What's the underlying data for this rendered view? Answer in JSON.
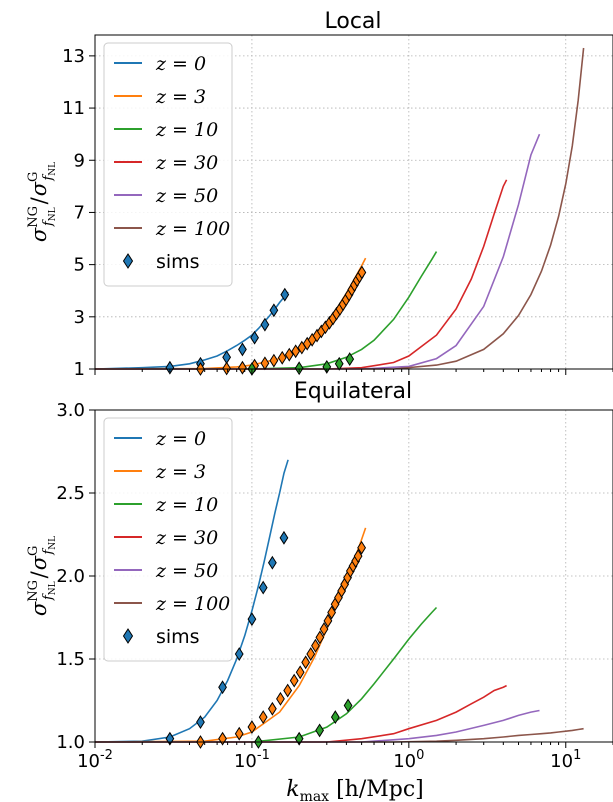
{
  "chart_data": [
    {
      "type": "line",
      "title": "Local",
      "ylabel": "σ^NG_fNL / σ^G_fNL",
      "xlabel": "",
      "xscale": "log",
      "xlim": [
        0.01,
        20
      ],
      "ylim": [
        1,
        13.8
      ],
      "yticks": [
        "1",
        "3",
        "5",
        "7",
        "9",
        "11",
        "13"
      ],
      "grid": true,
      "legend": "upper left",
      "series": [
        {
          "name": "z = 0",
          "color": "#1f77b4",
          "x": [
            0.01,
            0.02,
            0.03,
            0.04,
            0.05,
            0.06,
            0.07,
            0.08,
            0.09,
            0.1,
            0.11,
            0.12,
            0.13,
            0.14,
            0.15,
            0.16,
            0.17
          ],
          "y": [
            1.0,
            1.05,
            1.1,
            1.2,
            1.35,
            1.5,
            1.7,
            1.9,
            2.1,
            2.3,
            2.55,
            2.8,
            3.05,
            3.3,
            3.55,
            3.75,
            3.95
          ]
        },
        {
          "name": "z = 3",
          "color": "#ff7f0e",
          "x": [
            0.01,
            0.05,
            0.08,
            0.1,
            0.15,
            0.2,
            0.25,
            0.3,
            0.35,
            0.4,
            0.45,
            0.5,
            0.53
          ],
          "y": [
            1.0,
            1.02,
            1.08,
            1.15,
            1.4,
            1.8,
            2.25,
            2.8,
            3.35,
            3.9,
            4.45,
            4.95,
            5.25
          ]
        },
        {
          "name": "z = 10",
          "color": "#2ca02c",
          "x": [
            0.01,
            0.1,
            0.2,
            0.3,
            0.4,
            0.5,
            0.6,
            0.8,
            1.0,
            1.2,
            1.4,
            1.5
          ],
          "y": [
            1.0,
            1.0,
            1.05,
            1.2,
            1.45,
            1.75,
            2.1,
            2.9,
            3.75,
            4.55,
            5.2,
            5.5
          ]
        },
        {
          "name": "z = 30",
          "color": "#d62728",
          "x": [
            0.01,
            0.3,
            0.5,
            0.8,
            1.0,
            1.5,
            2.0,
            2.5,
            3.0,
            3.5,
            4.0,
            4.2
          ],
          "y": [
            1.0,
            1.0,
            1.05,
            1.25,
            1.5,
            2.3,
            3.3,
            4.45,
            5.7,
            6.95,
            8.0,
            8.25
          ]
        },
        {
          "name": "z = 50",
          "color": "#9467bd",
          "x": [
            0.01,
            0.5,
            1.0,
            1.5,
            2.0,
            3.0,
            4.0,
            5.0,
            6.0,
            6.8
          ],
          "y": [
            1.0,
            1.0,
            1.1,
            1.4,
            1.9,
            3.4,
            5.3,
            7.3,
            9.2,
            10.0
          ]
        },
        {
          "name": "z = 100",
          "color": "#8c564b",
          "x": [
            0.01,
            0.8,
            1.5,
            2.0,
            3.0,
            4.0,
            5.0,
            6.0,
            7.0,
            8.0,
            9.0,
            10.0,
            11.0,
            12.0,
            13.0
          ],
          "y": [
            1.0,
            1.0,
            1.15,
            1.3,
            1.75,
            2.35,
            3.05,
            3.85,
            4.75,
            5.75,
            6.85,
            8.1,
            9.55,
            11.3,
            13.3
          ]
        }
      ],
      "sims": {
        "name": "sims",
        "points": [
          {
            "x": 0.03,
            "y": 1.05,
            "color": "#1f77b4"
          },
          {
            "x": 0.047,
            "y": 1.2,
            "color": "#1f77b4"
          },
          {
            "x": 0.069,
            "y": 1.45,
            "color": "#1f77b4"
          },
          {
            "x": 0.087,
            "y": 1.75,
            "color": "#1f77b4"
          },
          {
            "x": 0.104,
            "y": 2.2,
            "color": "#1f77b4"
          },
          {
            "x": 0.121,
            "y": 2.7,
            "color": "#1f77b4"
          },
          {
            "x": 0.138,
            "y": 3.25,
            "color": "#1f77b4"
          },
          {
            "x": 0.162,
            "y": 3.85,
            "color": "#1f77b4"
          },
          {
            "x": 0.047,
            "y": 1.0,
            "color": "#ff7f0e"
          },
          {
            "x": 0.069,
            "y": 1.02,
            "color": "#ff7f0e"
          },
          {
            "x": 0.087,
            "y": 1.05,
            "color": "#ff7f0e"
          },
          {
            "x": 0.104,
            "y": 1.13,
            "color": "#ff7f0e"
          },
          {
            "x": 0.121,
            "y": 1.22,
            "color": "#ff7f0e"
          },
          {
            "x": 0.138,
            "y": 1.32,
            "color": "#ff7f0e"
          },
          {
            "x": 0.156,
            "y": 1.43,
            "color": "#ff7f0e"
          },
          {
            "x": 0.173,
            "y": 1.55,
            "color": "#ff7f0e"
          },
          {
            "x": 0.19,
            "y": 1.68,
            "color": "#ff7f0e"
          },
          {
            "x": 0.208,
            "y": 1.82,
            "color": "#ff7f0e"
          },
          {
            "x": 0.225,
            "y": 1.97,
            "color": "#ff7f0e"
          },
          {
            "x": 0.242,
            "y": 2.12,
            "color": "#ff7f0e"
          },
          {
            "x": 0.26,
            "y": 2.28,
            "color": "#ff7f0e"
          },
          {
            "x": 0.277,
            "y": 2.44,
            "color": "#ff7f0e"
          },
          {
            "x": 0.294,
            "y": 2.6,
            "color": "#ff7f0e"
          },
          {
            "x": 0.312,
            "y": 2.77,
            "color": "#ff7f0e"
          },
          {
            "x": 0.329,
            "y": 2.94,
            "color": "#ff7f0e"
          },
          {
            "x": 0.346,
            "y": 3.12,
            "color": "#ff7f0e"
          },
          {
            "x": 0.364,
            "y": 3.3,
            "color": "#ff7f0e"
          },
          {
            "x": 0.381,
            "y": 3.48,
            "color": "#ff7f0e"
          },
          {
            "x": 0.398,
            "y": 3.66,
            "color": "#ff7f0e"
          },
          {
            "x": 0.416,
            "y": 3.85,
            "color": "#ff7f0e"
          },
          {
            "x": 0.433,
            "y": 4.04,
            "color": "#ff7f0e"
          },
          {
            "x": 0.45,
            "y": 4.22,
            "color": "#ff7f0e"
          },
          {
            "x": 0.468,
            "y": 4.4,
            "color": "#ff7f0e"
          },
          {
            "x": 0.485,
            "y": 4.55,
            "color": "#ff7f0e"
          },
          {
            "x": 0.502,
            "y": 4.7,
            "color": "#ff7f0e"
          },
          {
            "x": 0.1,
            "y": 1.0,
            "color": "#2ca02c"
          },
          {
            "x": 0.2,
            "y": 1.03,
            "color": "#2ca02c"
          },
          {
            "x": 0.3,
            "y": 1.08,
            "color": "#2ca02c"
          },
          {
            "x": 0.36,
            "y": 1.2,
            "color": "#2ca02c"
          },
          {
            "x": 0.42,
            "y": 1.38,
            "color": "#2ca02c"
          }
        ]
      }
    },
    {
      "type": "line",
      "title": "Equilateral",
      "ylabel": "σ^NG_fNL / σ^G_fNL",
      "xlabel": "k_max [h/Mpc]",
      "xscale": "log",
      "xlim": [
        0.01,
        20
      ],
      "ylim": [
        1.0,
        3.0
      ],
      "yticks": [
        "1.0",
        "1.5",
        "2.0",
        "2.5",
        "3.0"
      ],
      "xticks": [
        {
          "base": "10",
          "exp": "-2",
          "value": 0.01
        },
        {
          "base": "10",
          "exp": "-1",
          "value": 0.1
        },
        {
          "base": "10",
          "exp": "0",
          "value": 1
        },
        {
          "base": "10",
          "exp": "1",
          "value": 10
        }
      ],
      "grid": true,
      "legend": "upper left",
      "series": [
        {
          "name": "z = 0",
          "color": "#1f77b4",
          "x": [
            0.01,
            0.02,
            0.03,
            0.04,
            0.05,
            0.06,
            0.07,
            0.08,
            0.09,
            0.1,
            0.11,
            0.12,
            0.13,
            0.14,
            0.15,
            0.16,
            0.17
          ],
          "y": [
            1.0,
            1.005,
            1.03,
            1.08,
            1.15,
            1.25,
            1.37,
            1.5,
            1.64,
            1.79,
            1.94,
            2.09,
            2.24,
            2.38,
            2.5,
            2.62,
            2.7
          ]
        },
        {
          "name": "z = 3",
          "color": "#ff7f0e",
          "x": [
            0.01,
            0.05,
            0.08,
            0.1,
            0.15,
            0.2,
            0.25,
            0.3,
            0.35,
            0.4,
            0.45,
            0.5,
            0.53
          ],
          "y": [
            1.0,
            1.005,
            1.03,
            1.06,
            1.18,
            1.34,
            1.51,
            1.68,
            1.84,
            1.98,
            2.1,
            2.22,
            2.29
          ]
        },
        {
          "name": "z = 10",
          "color": "#2ca02c",
          "x": [
            0.01,
            0.1,
            0.2,
            0.3,
            0.4,
            0.5,
            0.6,
            0.8,
            1.0,
            1.2,
            1.4,
            1.5
          ],
          "y": [
            1.0,
            1.0,
            1.03,
            1.09,
            1.17,
            1.26,
            1.35,
            1.5,
            1.62,
            1.71,
            1.78,
            1.81
          ]
        },
        {
          "name": "z = 30",
          "color": "#d62728",
          "x": [
            0.01,
            0.3,
            0.5,
            0.8,
            1.0,
            1.5,
            2.0,
            2.5,
            3.0,
            3.5,
            4.0,
            4.2
          ],
          "y": [
            1.0,
            1.0,
            1.02,
            1.05,
            1.08,
            1.13,
            1.18,
            1.23,
            1.27,
            1.31,
            1.33,
            1.34
          ]
        },
        {
          "name": "z = 50",
          "color": "#9467bd",
          "x": [
            0.01,
            0.5,
            1.0,
            1.5,
            2.0,
            3.0,
            4.0,
            5.0,
            6.0,
            6.8
          ],
          "y": [
            1.0,
            1.0,
            1.02,
            1.04,
            1.06,
            1.1,
            1.13,
            1.16,
            1.18,
            1.19
          ]
        },
        {
          "name": "z = 100",
          "color": "#8c564b",
          "x": [
            0.01,
            0.8,
            1.5,
            2.0,
            3.0,
            4.0,
            5.0,
            6.0,
            7.0,
            8.0,
            9.0,
            10.0,
            11.0,
            12.0,
            13.0
          ],
          "y": [
            1.0,
            1.0,
            1.005,
            1.01,
            1.02,
            1.03,
            1.04,
            1.045,
            1.05,
            1.055,
            1.06,
            1.065,
            1.07,
            1.075,
            1.08
          ]
        }
      ],
      "sims": {
        "name": "sims",
        "points": [
          {
            "x": 0.03,
            "y": 1.02,
            "color": "#1f77b4"
          },
          {
            "x": 0.047,
            "y": 1.12,
            "color": "#1f77b4"
          },
          {
            "x": 0.065,
            "y": 1.33,
            "color": "#1f77b4"
          },
          {
            "x": 0.083,
            "y": 1.53,
            "color": "#1f77b4"
          },
          {
            "x": 0.1,
            "y": 1.74,
            "color": "#1f77b4"
          },
          {
            "x": 0.118,
            "y": 1.93,
            "color": "#1f77b4"
          },
          {
            "x": 0.135,
            "y": 2.08,
            "color": "#1f77b4"
          },
          {
            "x": 0.16,
            "y": 2.23,
            "color": "#1f77b4"
          },
          {
            "x": 0.047,
            "y": 1.0,
            "color": "#ff7f0e"
          },
          {
            "x": 0.065,
            "y": 1.02,
            "color": "#ff7f0e"
          },
          {
            "x": 0.083,
            "y": 1.05,
            "color": "#ff7f0e"
          },
          {
            "x": 0.1,
            "y": 1.09,
            "color": "#ff7f0e"
          },
          {
            "x": 0.118,
            "y": 1.15,
            "color": "#ff7f0e"
          },
          {
            "x": 0.135,
            "y": 1.2,
            "color": "#ff7f0e"
          },
          {
            "x": 0.152,
            "y": 1.26,
            "color": "#ff7f0e"
          },
          {
            "x": 0.169,
            "y": 1.31,
            "color": "#ff7f0e"
          },
          {
            "x": 0.186,
            "y": 1.37,
            "color": "#ff7f0e"
          },
          {
            "x": 0.203,
            "y": 1.42,
            "color": "#ff7f0e"
          },
          {
            "x": 0.22,
            "y": 1.48,
            "color": "#ff7f0e"
          },
          {
            "x": 0.237,
            "y": 1.53,
            "color": "#ff7f0e"
          },
          {
            "x": 0.254,
            "y": 1.58,
            "color": "#ff7f0e"
          },
          {
            "x": 0.271,
            "y": 1.63,
            "color": "#ff7f0e"
          },
          {
            "x": 0.288,
            "y": 1.68,
            "color": "#ff7f0e"
          },
          {
            "x": 0.305,
            "y": 1.73,
            "color": "#ff7f0e"
          },
          {
            "x": 0.322,
            "y": 1.78,
            "color": "#ff7f0e"
          },
          {
            "x": 0.339,
            "y": 1.83,
            "color": "#ff7f0e"
          },
          {
            "x": 0.356,
            "y": 1.87,
            "color": "#ff7f0e"
          },
          {
            "x": 0.373,
            "y": 1.91,
            "color": "#ff7f0e"
          },
          {
            "x": 0.39,
            "y": 1.95,
            "color": "#ff7f0e"
          },
          {
            "x": 0.407,
            "y": 1.99,
            "color": "#ff7f0e"
          },
          {
            "x": 0.424,
            "y": 2.03,
            "color": "#ff7f0e"
          },
          {
            "x": 0.441,
            "y": 2.06,
            "color": "#ff7f0e"
          },
          {
            "x": 0.458,
            "y": 2.09,
            "color": "#ff7f0e"
          },
          {
            "x": 0.475,
            "y": 2.12,
            "color": "#ff7f0e"
          },
          {
            "x": 0.5,
            "y": 2.17,
            "color": "#ff7f0e"
          },
          {
            "x": 0.11,
            "y": 1.0,
            "color": "#2ca02c"
          },
          {
            "x": 0.2,
            "y": 1.02,
            "color": "#2ca02c"
          },
          {
            "x": 0.27,
            "y": 1.07,
            "color": "#2ca02c"
          },
          {
            "x": 0.34,
            "y": 1.15,
            "color": "#2ca02c"
          },
          {
            "x": 0.41,
            "y": 1.22,
            "color": "#2ca02c"
          }
        ]
      }
    }
  ]
}
